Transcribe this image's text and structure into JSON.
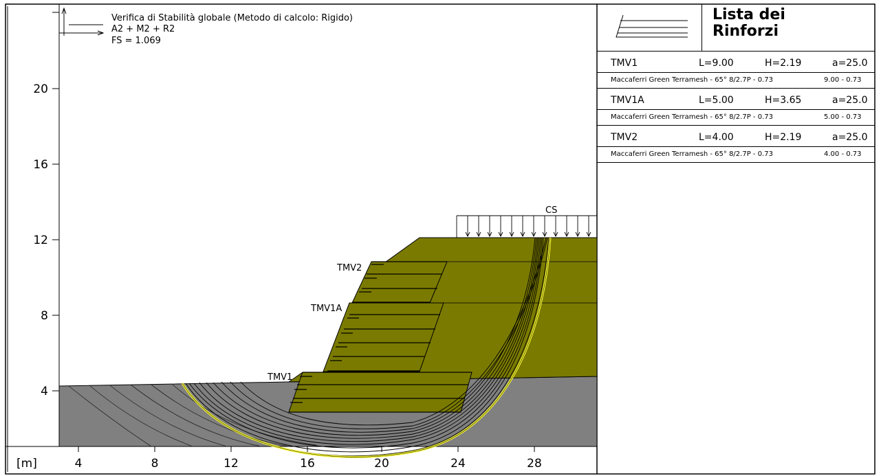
{
  "header": {
    "title": "Verifica di Stabilità globale (Metodo di calcolo: Rigido)",
    "combination": "A2 + M2 + R2",
    "safety_factor": "FS = 1.069"
  },
  "axis": {
    "unit_label": "[m]",
    "x_ticks": [
      "4",
      "8",
      "12",
      "16",
      "20",
      "24",
      "28"
    ],
    "y_ticks": [
      "4",
      "8",
      "12",
      "16",
      "20"
    ]
  },
  "labels": {
    "load": "CS",
    "tmv1": "TMV1",
    "tmv1a": "TMV1A",
    "tmv2": "TMV2"
  },
  "legend": {
    "title": "Lista dei\nRinforzi",
    "items": [
      {
        "name": "TMV1",
        "L": "L=9.00",
        "H": "H=2.19",
        "a": "a=25.0",
        "product": "Maccaferri Green Terramesh - 65° 8/2.7P - 0.73",
        "dims": "9.00 - 0.73"
      },
      {
        "name": "TMV1A",
        "L": "L=5.00",
        "H": "H=3.65",
        "a": "a=25.0",
        "product": "Maccaferri Green Terramesh - 65° 8/2.7P - 0.73",
        "dims": "5.00 - 0.73"
      },
      {
        "name": "TMV2",
        "L": "L=4.00",
        "H": "H=2.19",
        "a": "a=25.0",
        "product": "Maccaferri Green Terramesh - 65° 8/2.7P - 0.73",
        "dims": "4.00 - 0.73"
      }
    ]
  },
  "colors": {
    "ground": "#808080",
    "fill": "#7a7a00",
    "critical_surface": "#ffff33"
  }
}
